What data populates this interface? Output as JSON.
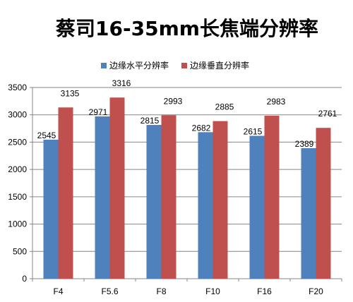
{
  "chart_data": {
    "type": "bar",
    "title": "蔡司16-35mm长焦端分辨率",
    "xlabel": "",
    "ylabel": "",
    "ylim": [
      0,
      3500
    ],
    "yticks": [
      0,
      500,
      1000,
      1500,
      2000,
      2500,
      3000,
      3500
    ],
    "grid": true,
    "legend_position": "top-center",
    "categories": [
      "F4",
      "F5.6",
      "F8",
      "F10",
      "F16",
      "F20"
    ],
    "series": [
      {
        "name": "边缘水平分辨率",
        "color": "#4F81BD",
        "values": [
          2545,
          2971,
          2815,
          2682,
          2615,
          2389
        ]
      },
      {
        "name": "边缘垂直分辨率",
        "color": "#C0504D",
        "values": [
          3135,
          3316,
          2993,
          2885,
          2983,
          2761
        ]
      }
    ]
  }
}
